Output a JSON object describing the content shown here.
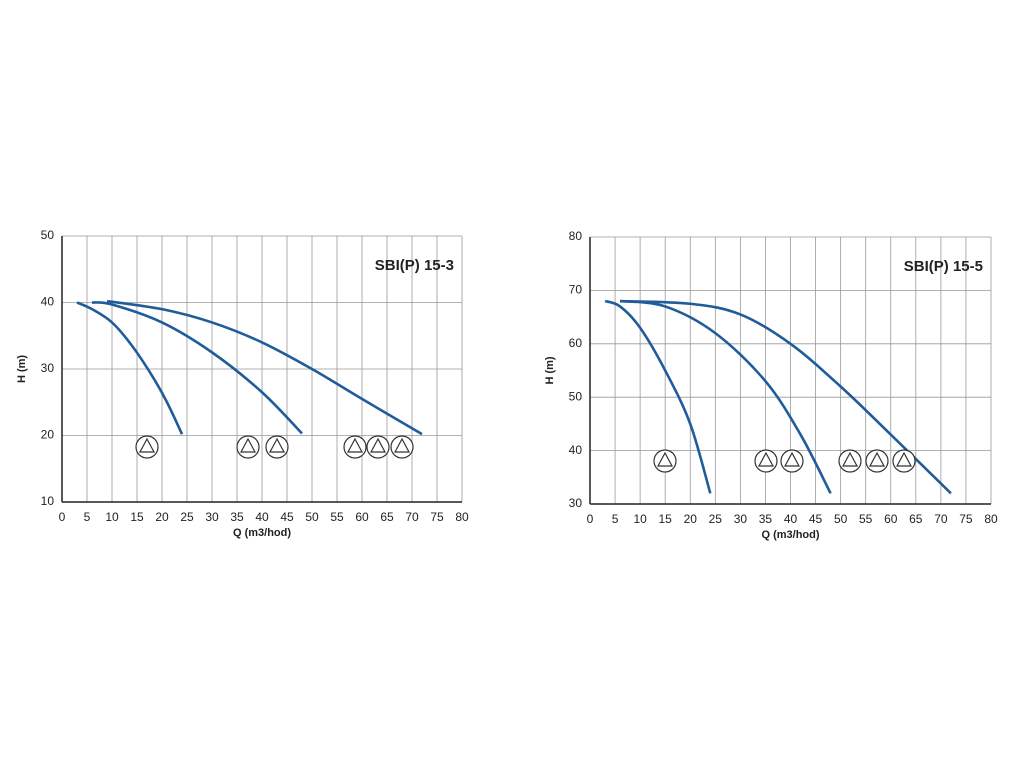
{
  "chart_data": [
    {
      "type": "line",
      "title": "SBI(P) 15-3",
      "xlabel": "Q (m3/hod)",
      "ylabel": "H (m)",
      "xlim": [
        0,
        80
      ],
      "ylim": [
        10,
        50
      ],
      "xticks": [
        0,
        5,
        10,
        15,
        20,
        25,
        30,
        35,
        40,
        45,
        50,
        55,
        60,
        65,
        70,
        75,
        80
      ],
      "yticks": [
        10,
        20,
        30,
        40,
        50
      ],
      "grid": true,
      "series": [
        {
          "color": "#1f5c99",
          "x": [
            3,
            6,
            10,
            14,
            18,
            21,
            24
          ],
          "values": [
            40,
            39,
            37,
            33.5,
            29,
            25,
            20.2
          ]
        },
        {
          "color": "#1f5c99",
          "x": [
            6,
            10,
            20,
            30,
            40,
            48
          ],
          "values": [
            40,
            39.7,
            37,
            32.5,
            26.5,
            20.3
          ]
        },
        {
          "color": "#1f5c99",
          "x": [
            9,
            20,
            30,
            40,
            50,
            60,
            72
          ],
          "values": [
            40.2,
            39,
            37,
            34,
            30,
            25.5,
            20.2
          ]
        }
      ]
    },
    {
      "type": "line",
      "title": "SBI(P) 15-5",
      "xlabel": "Q (m3/hod)",
      "ylabel": "H (m)",
      "xlim": [
        0,
        80
      ],
      "ylim": [
        30,
        80
      ],
      "xticks": [
        0,
        5,
        10,
        15,
        20,
        25,
        30,
        35,
        40,
        45,
        50,
        55,
        60,
        65,
        70,
        75,
        80
      ],
      "yticks": [
        30,
        40,
        50,
        60,
        70,
        80
      ],
      "grid": true,
      "series": [
        {
          "color": "#1f5c99",
          "x": [
            3,
            6,
            10,
            15,
            20,
            24
          ],
          "values": [
            68,
            67,
            63,
            55,
            45,
            32
          ]
        },
        {
          "color": "#1f5c99",
          "x": [
            6,
            15,
            25,
            35,
            42,
            48
          ],
          "values": [
            68,
            67,
            62,
            53,
            43,
            32
          ]
        },
        {
          "color": "#1f5c99",
          "x": [
            6,
            20,
            30,
            40,
            50,
            60,
            72
          ],
          "values": [
            68,
            67.5,
            65.5,
            60,
            52,
            43,
            32
          ]
        }
      ]
    }
  ]
}
